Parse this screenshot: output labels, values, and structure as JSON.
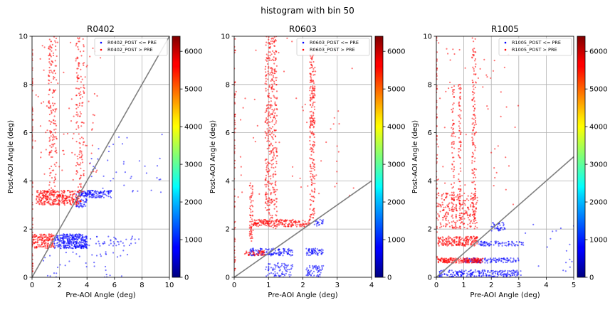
{
  "suptitle": "histogram with bin 50",
  "colorbar_ticks": [
    0,
    1000,
    2000,
    3000,
    4000,
    5000,
    6000
  ],
  "colorbar_max": 6400,
  "colors": {
    "post_le_pre": "#0000ff",
    "post_gt_pre": "#ff0000",
    "diagonal": "#808080",
    "grid": "#b0b0b0"
  },
  "chart_data": [
    {
      "type": "scatter",
      "title": "R0402",
      "xlabel": "Pre-AOI Angle (deg)",
      "ylabel": "Post-AOI Angle (deg)",
      "xlim": [
        0,
        10
      ],
      "ylim": [
        0,
        10
      ],
      "xticks": [
        0,
        2,
        4,
        6,
        8,
        10
      ],
      "yticks": [
        0,
        2,
        4,
        6,
        8,
        10
      ],
      "grid": true,
      "legend": "top-right",
      "series": [
        {
          "name": "R0402_POST <= PRE",
          "color": "#0000ff",
          "clusters": [
            {
              "x": [
                1.6,
                4.0
              ],
              "y": [
                1.2,
                1.8
              ],
              "n": 320
            },
            {
              "x": [
                3.6,
                5.8
              ],
              "y": [
                3.3,
                3.6
              ],
              "n": 120
            },
            {
              "x": [
                3.2,
                4.0
              ],
              "y": [
                2.9,
                3.6
              ],
              "n": 60
            },
            {
              "x": [
                4.0,
                8.0
              ],
              "y": [
                1.3,
                1.7
              ],
              "n": 40
            },
            {
              "x": [
                4.0,
                9.5
              ],
              "y": [
                3.5,
                6.0
              ],
              "n": 40
            },
            {
              "x": [
                0.6,
                7.0
              ],
              "y": [
                0.0,
                1.2
              ],
              "n": 40
            }
          ]
        },
        {
          "name": "R0402_POST > PRE",
          "color": "#ff0000",
          "clusters": [
            {
              "x": [
                0.3,
                3.6
              ],
              "y": [
                3.0,
                3.6
              ],
              "n": 320
            },
            {
              "x": [
                0.0,
                1.6
              ],
              "y": [
                1.2,
                1.8
              ],
              "n": 160
            },
            {
              "x": [
                1.2,
                1.8
              ],
              "y": [
                3.5,
                10.0
              ],
              "n": 160
            },
            {
              "x": [
                3.2,
                3.8
              ],
              "y": [
                3.5,
                10.0
              ],
              "n": 140
            },
            {
              "x": [
                0.0,
                0.05
              ],
              "y": [
                0.0,
                10.0
              ],
              "n": 60
            },
            {
              "x": [
                0.2,
                5.0
              ],
              "y": [
                4.0,
                10.0
              ],
              "n": 80
            }
          ]
        }
      ]
    },
    {
      "type": "scatter",
      "title": "R0603",
      "xlabel": "Pre-AOI Angle (deg)",
      "ylabel": "Post-AOI Angle (deg)",
      "xlim": [
        0,
        4
      ],
      "ylim": [
        0,
        10
      ],
      "xticks": [
        0,
        1,
        2,
        3,
        4
      ],
      "yticks": [
        0,
        2,
        4,
        6,
        8,
        10
      ],
      "grid": true,
      "legend": "top-right",
      "series": [
        {
          "name": "R0603_POST <= PRE",
          "color": "#0000ff",
          "clusters": [
            {
              "x": [
                0.45,
                1.7
              ],
              "y": [
                0.9,
                1.2
              ],
              "n": 140
            },
            {
              "x": [
                0.9,
                1.7
              ],
              "y": [
                0.0,
                0.6
              ],
              "n": 80
            },
            {
              "x": [
                2.1,
                2.6
              ],
              "y": [
                0.9,
                1.2
              ],
              "n": 60
            },
            {
              "x": [
                2.1,
                2.6
              ],
              "y": [
                0.0,
                0.5
              ],
              "n": 60
            },
            {
              "x": [
                2.3,
                2.6
              ],
              "y": [
                2.1,
                2.4
              ],
              "n": 20
            }
          ]
        },
        {
          "name": "R0603_POST > PRE",
          "color": "#ff0000",
          "clusters": [
            {
              "x": [
                0.9,
                1.25
              ],
              "y": [
                2.0,
                10.0
              ],
              "n": 400
            },
            {
              "x": [
                0.5,
                2.2
              ],
              "y": [
                2.1,
                2.4
              ],
              "n": 200
            },
            {
              "x": [
                2.2,
                2.35
              ],
              "y": [
                2.4,
                9.5
              ],
              "n": 220
            },
            {
              "x": [
                0.45,
                0.55
              ],
              "y": [
                1.5,
                4.0
              ],
              "n": 60
            },
            {
              "x": [
                0.3,
                0.9
              ],
              "y": [
                0.9,
                1.1
              ],
              "n": 50
            },
            {
              "x": [
                0.0,
                0.03
              ],
              "y": [
                0.0,
                10.0
              ],
              "n": 60
            },
            {
              "x": [
                0.0,
                3.5
              ],
              "y": [
                3.0,
                10.0
              ],
              "n": 60
            }
          ]
        }
      ]
    },
    {
      "type": "scatter",
      "title": "R1005",
      "xlabel": "Pre-AOI Angle (deg)",
      "ylabel": "Post-AOI Angle (deg)",
      "xlim": [
        0,
        5
      ],
      "ylim": [
        0,
        10
      ],
      "xticks": [
        0,
        1,
        2,
        3,
        4,
        5
      ],
      "yticks": [
        0,
        2,
        4,
        6,
        8,
        10
      ],
      "grid": true,
      "legend": "top-right",
      "series": [
        {
          "name": "R1005_POST <= PRE",
          "color": "#0000ff",
          "clusters": [
            {
              "x": [
                0.1,
                3.0
              ],
              "y": [
                0.0,
                0.3
              ],
              "n": 240
            },
            {
              "x": [
                1.0,
                3.0
              ],
              "y": [
                0.6,
                0.8
              ],
              "n": 120
            },
            {
              "x": [
                1.5,
                3.2
              ],
              "y": [
                1.3,
                1.5
              ],
              "n": 80
            },
            {
              "x": [
                2.0,
                2.5
              ],
              "y": [
                1.9,
                2.3
              ],
              "n": 40
            },
            {
              "x": [
                3.0,
                5.0
              ],
              "y": [
                0.0,
                2.5
              ],
              "n": 20
            }
          ]
        },
        {
          "name": "R1005_POST > PRE",
          "color": "#ff0000",
          "clusters": [
            {
              "x": [
                0.05,
                1.7
              ],
              "y": [
                0.6,
                0.8
              ],
              "n": 200
            },
            {
              "x": [
                0.05,
                1.5
              ],
              "y": [
                1.3,
                1.7
              ],
              "n": 200
            },
            {
              "x": [
                0.05,
                1.5
              ],
              "y": [
                2.0,
                3.5
              ],
              "n": 220
            },
            {
              "x": [
                0.55,
                0.65
              ],
              "y": [
                2.0,
                8.0
              ],
              "n": 80
            },
            {
              "x": [
                0.8,
                0.9
              ],
              "y": [
                2.0,
                8.0
              ],
              "n": 80
            },
            {
              "x": [
                1.3,
                1.45
              ],
              "y": [
                2.0,
                10.0
              ],
              "n": 140
            },
            {
              "x": [
                0.0,
                0.03
              ],
              "y": [
                0.0,
                10.0
              ],
              "n": 60
            },
            {
              "x": [
                0.0,
                3.0
              ],
              "y": [
                3.0,
                10.0
              ],
              "n": 60
            }
          ]
        }
      ]
    }
  ]
}
